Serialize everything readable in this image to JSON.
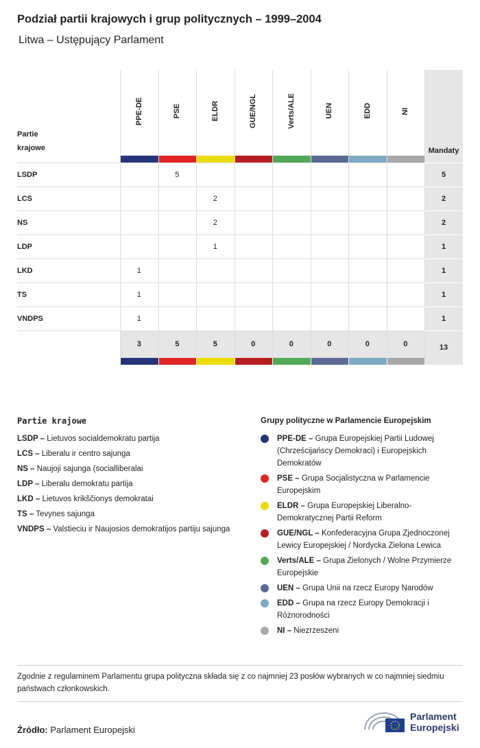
{
  "header": {
    "title": "Podział partii krajowych i grup politycznych – 1999–2004",
    "subtitle": "Litwa – Ustępujący Parlament"
  },
  "table": {
    "row_header": "Partie krajowe",
    "total_header": "Mandaty",
    "columns": [
      {
        "name": "PPE-DE",
        "color": "#263579"
      },
      {
        "name": "PSE",
        "color": "#e02424"
      },
      {
        "name": "ELDR",
        "color": "#ecdb00"
      },
      {
        "name": "GUE/NGL",
        "color": "#b81d23"
      },
      {
        "name": "Verts/ALE",
        "color": "#52a857"
      },
      {
        "name": "UEN",
        "color": "#5a6a93"
      },
      {
        "name": "EDD",
        "color": "#7fa9c2"
      },
      {
        "name": "NI",
        "color": "#a9a9a9"
      }
    ],
    "rows": [
      {
        "party": "LSDP",
        "cells": [
          null,
          5,
          null,
          null,
          null,
          null,
          null,
          null
        ],
        "total": 5
      },
      {
        "party": "LCS",
        "cells": [
          null,
          null,
          2,
          null,
          null,
          null,
          null,
          null
        ],
        "total": 2
      },
      {
        "party": "NS",
        "cells": [
          null,
          null,
          2,
          null,
          null,
          null,
          null,
          null
        ],
        "total": 2
      },
      {
        "party": "LDP",
        "cells": [
          null,
          null,
          1,
          null,
          null,
          null,
          null,
          null
        ],
        "total": 1
      },
      {
        "party": "LKD",
        "cells": [
          1,
          null,
          null,
          null,
          null,
          null,
          null,
          null
        ],
        "total": 1
      },
      {
        "party": "TS",
        "cells": [
          1,
          null,
          null,
          null,
          null,
          null,
          null,
          null
        ],
        "total": 1
      },
      {
        "party": "VNDPS",
        "cells": [
          1,
          null,
          null,
          null,
          null,
          null,
          null,
          null
        ],
        "total": 1
      }
    ],
    "column_totals": [
      3,
      5,
      5,
      0,
      0,
      0,
      0,
      0
    ],
    "grand_total": 13
  },
  "legend_parties": {
    "title": "Partie krajowe",
    "items": [
      {
        "key": "LSDP –",
        "text": "Lietuvos socialdemokratu partija"
      },
      {
        "key": "LCS –",
        "text": "Liberalu ir centro sajunga"
      },
      {
        "key": "NS –",
        "text": "Naujoji sajunga (socialliberalai"
      },
      {
        "key": "LDP –",
        "text": "Liberalu demokratu partija"
      },
      {
        "key": "LKD –",
        "text": "Lietuvos krikščionys demokratai"
      },
      {
        "key": "TS –",
        "text": "Tevynes sajunga"
      },
      {
        "key": "VNDPS –",
        "text": "Valstieciu ir Naujosios demokratijos partiju sajunga"
      }
    ]
  },
  "legend_groups": {
    "title": "Grupy polityczne w Parlamencie Europejskim",
    "items": [
      {
        "key": "PPE-DE –",
        "text": "Grupa Europejskiej Partii Ludowej (Chrześcijańscy Demokraci) i Europejskich Demokratów",
        "color": "#263579"
      },
      {
        "key": "PSE –",
        "text": "Grupa Socjalistyczna w Parlamencie Europejskim",
        "color": "#e02424"
      },
      {
        "key": "ELDR –",
        "text": "Grupa Europejskiej Liberalno-Demokratycznej Partii Reform",
        "color": "#ecdb00"
      },
      {
        "key": "GUE/NGL –",
        "text": "Konfederacyjna Grupa Zjednoczonej Lewicy Europejskiej / Nordycka Zielona Lewica",
        "color": "#b81d23"
      },
      {
        "key": "Verts/ALE –",
        "text": "Grupa Zielonych / Wolne Przymierze Europejskie",
        "color": "#52a857"
      },
      {
        "key": "UEN –",
        "text": "Grupa Unii na rzecz Europy Narodów",
        "color": "#5a6a93"
      },
      {
        "key": "EDD –",
        "text": "Grupa na rzecz Europy Demokracji i Różnorodności",
        "color": "#7fa9c2"
      },
      {
        "key": "NI –",
        "text": "Niezrzeszeni",
        "color": "#a9a9a9"
      }
    ]
  },
  "note": "Zgodnie z regulaminem Parlamentu grupa polityczna składa się z co najmniej 23 posłów wybranych w co najmniej siedmiu państwach członkowskich.",
  "source": {
    "label": "Źródło:",
    "text": "Parlament Europejski"
  },
  "logo": {
    "line1": "Parlament",
    "line2": "Europejski"
  }
}
